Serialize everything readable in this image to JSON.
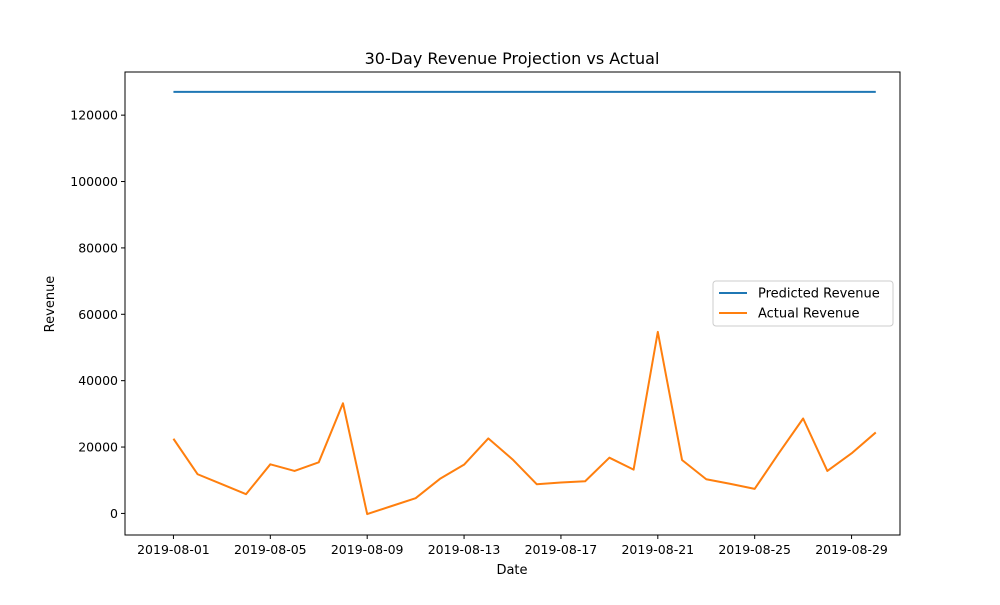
{
  "chart_data": {
    "type": "line",
    "title": "30-Day Revenue Projection vs Actual",
    "xlabel": "Date",
    "ylabel": "Revenue",
    "x": [
      "2019-08-01",
      "2019-08-02",
      "2019-08-03",
      "2019-08-04",
      "2019-08-05",
      "2019-08-06",
      "2019-08-07",
      "2019-08-08",
      "2019-08-09",
      "2019-08-10",
      "2019-08-11",
      "2019-08-12",
      "2019-08-13",
      "2019-08-14",
      "2019-08-15",
      "2019-08-16",
      "2019-08-17",
      "2019-08-18",
      "2019-08-19",
      "2019-08-20",
      "2019-08-21",
      "2019-08-22",
      "2019-08-23",
      "2019-08-24",
      "2019-08-25",
      "2019-08-26",
      "2019-08-27",
      "2019-08-28",
      "2019-08-29",
      "2019-08-30"
    ],
    "xlim": [
      "2019-07-30",
      "2019-08-31"
    ],
    "x_ticks": [
      "2019-08-01",
      "2019-08-05",
      "2019-08-09",
      "2019-08-13",
      "2019-08-17",
      "2019-08-21",
      "2019-08-25",
      "2019-08-29"
    ],
    "ylim": [
      -6500,
      133000
    ],
    "y_ticks": [
      0,
      20000,
      40000,
      60000,
      80000,
      100000,
      120000
    ],
    "grid": false,
    "legend_position": "center-right",
    "series": [
      {
        "name": "Predicted Revenue",
        "color": "#1f77b4",
        "values": [
          127000,
          127000,
          127000,
          127000,
          127000,
          127000,
          127000,
          127000,
          127000,
          127000,
          127000,
          127000,
          127000,
          127000,
          127000,
          127000,
          127000,
          127000,
          127000,
          127000,
          127000,
          127000,
          127000,
          127000,
          127000,
          127000,
          127000,
          127000,
          127000,
          127000
        ]
      },
      {
        "name": "Actual Revenue",
        "color": "#ff7f0e",
        "values": [
          22500,
          11800,
          8800,
          5800,
          14800,
          12800,
          15400,
          33200,
          -200,
          2200,
          4600,
          10400,
          14700,
          22600,
          16300,
          8800,
          9300,
          9700,
          16800,
          13200,
          54700,
          16100,
          10300,
          8900,
          7400,
          18200,
          28600,
          12800,
          18100,
          24400
        ]
      }
    ]
  }
}
